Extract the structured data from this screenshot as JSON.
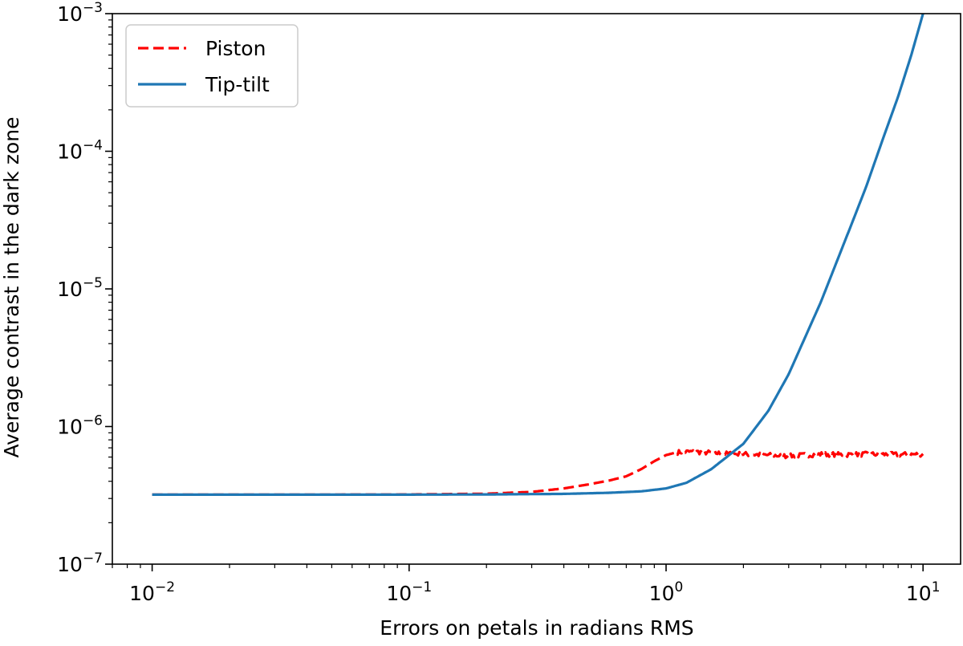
{
  "chart_data": {
    "type": "line",
    "title": "",
    "xlabel": "Errors on petals in radians RMS",
    "ylabel": "Average contrast in the dark zone",
    "xscale": "log",
    "yscale": "log",
    "xlim": [
      0.007,
      14
    ],
    "ylim": [
      1e-07,
      0.001
    ],
    "grid": false,
    "legend_position": "top-left",
    "x_ticks": [
      {
        "value": 0.01,
        "base": "10",
        "exp": "−2"
      },
      {
        "value": 0.1,
        "base": "10",
        "exp": "−1"
      },
      {
        "value": 1,
        "base": "10",
        "exp": "0"
      },
      {
        "value": 10,
        "base": "10",
        "exp": "1"
      }
    ],
    "y_ticks": [
      {
        "value": 1e-07,
        "base": "10",
        "exp": "−7"
      },
      {
        "value": 1e-06,
        "base": "10",
        "exp": "−6"
      },
      {
        "value": 1e-05,
        "base": "10",
        "exp": "−5"
      },
      {
        "value": 0.0001,
        "base": "10",
        "exp": "−4"
      },
      {
        "value": 0.001,
        "base": "10",
        "exp": "−3"
      }
    ],
    "series": [
      {
        "name": "Piston",
        "color": "#ff0000",
        "style": "dashed",
        "noise_from_x": 1.1,
        "x": [
          0.01,
          0.03,
          0.1,
          0.2,
          0.3,
          0.4,
          0.5,
          0.6,
          0.7,
          0.8,
          0.9,
          1.0,
          1.1,
          1.2,
          1.3,
          1.5,
          1.7,
          2.0,
          2.5,
          3.0,
          4.0,
          5.0,
          6.0,
          8.0,
          10.0
        ],
        "y": [
          3.2e-07,
          3.2e-07,
          3.21e-07,
          3.25e-07,
          3.35e-07,
          3.55e-07,
          3.8e-07,
          4.05e-07,
          4.35e-07,
          4.9e-07,
          5.6e-07,
          6.2e-07,
          6.5e-07,
          6.55e-07,
          6.55e-07,
          6.45e-07,
          6.35e-07,
          6.3e-07,
          6.2e-07,
          6.1e-07,
          6.3e-07,
          6.25e-07,
          6.3e-07,
          6.25e-07,
          6.3e-07
        ]
      },
      {
        "name": "Tip-tilt",
        "color": "#1f77b4",
        "style": "solid",
        "noise_from_x": 1000,
        "x": [
          0.01,
          0.1,
          0.2,
          0.4,
          0.6,
          0.8,
          1.0,
          1.2,
          1.5,
          2.0,
          2.5,
          3.0,
          4.0,
          5.0,
          6.0,
          7.0,
          8.0,
          9.0,
          10.0
        ],
        "y": [
          3.2e-07,
          3.2e-07,
          3.21e-07,
          3.24e-07,
          3.3e-07,
          3.38e-07,
          3.55e-07,
          3.9e-07,
          4.9e-07,
          7.5e-07,
          1.3e-06,
          2.4e-06,
          8e-06,
          2.3e-05,
          5.5e-05,
          0.000125,
          0.00025,
          0.0005,
          0.001
        ]
      }
    ]
  }
}
